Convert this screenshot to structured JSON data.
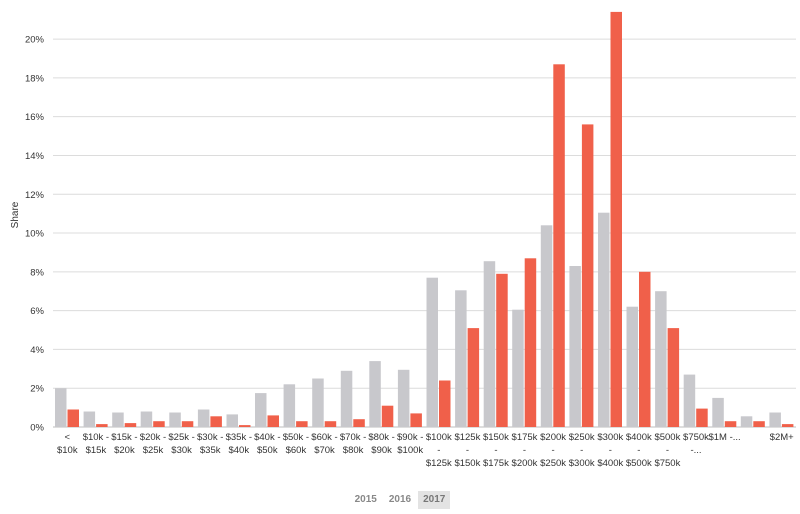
{
  "chart_data": {
    "type": "bar",
    "ylabel": "Share",
    "xlabel": "",
    "ylim": [
      0,
      21.5
    ],
    "yticks": [
      "0%",
      "2%",
      "4%",
      "6%",
      "8%",
      "10%",
      "12%",
      "14%",
      "16%",
      "18%",
      "20%"
    ],
    "grid": true,
    "legend_position": "bottom",
    "categories": [
      [
        "<",
        "$10k"
      ],
      [
        "$10k -",
        "$15k"
      ],
      [
        "$15k -",
        "$20k"
      ],
      [
        "$20k -",
        "$25k"
      ],
      [
        "$25k -",
        "$30k"
      ],
      [
        "$30k -",
        "$35k"
      ],
      [
        "$35k -",
        "$40k"
      ],
      [
        "$40k -",
        "$50k"
      ],
      [
        "$50k -",
        "$60k"
      ],
      [
        "$60k -",
        "$70k"
      ],
      [
        "$70k -",
        "$80k"
      ],
      [
        "$80k -",
        "$90k"
      ],
      [
        "$90k -",
        "$100k"
      ],
      [
        "$100k",
        "-",
        "$125k"
      ],
      [
        "$125k",
        "-",
        "$150k"
      ],
      [
        "$150k",
        "-",
        "$175k"
      ],
      [
        "$175k",
        "-",
        "$200k"
      ],
      [
        "$200k",
        "-",
        "$250k"
      ],
      [
        "$250k",
        "-",
        "$300k"
      ],
      [
        "$300k",
        "-",
        "$400k"
      ],
      [
        "$400k",
        "-",
        "$500k"
      ],
      [
        "$500k",
        "-",
        "$750k"
      ],
      [
        "$750k",
        "-..."
      ],
      [
        "$1M -..."
      ],
      [
        ""
      ],
      [
        "$2M+"
      ]
    ],
    "series": [
      {
        "name": "2016",
        "color": "#c8c8cc",
        "values": [
          2.0,
          0.8,
          0.75,
          0.8,
          0.75,
          0.9,
          0.65,
          1.75,
          2.2,
          2.5,
          2.9,
          3.4,
          2.95,
          7.7,
          7.05,
          8.55,
          6.05,
          10.4,
          8.3,
          11.05,
          6.2,
          7.0,
          2.7,
          1.5,
          0.55,
          0.75
        ]
      },
      {
        "name": "2017",
        "color": "#f0604a",
        "values": [
          0.9,
          0.15,
          0.2,
          0.3,
          0.3,
          0.55,
          0.1,
          0.6,
          0.3,
          0.3,
          0.4,
          1.1,
          0.7,
          2.4,
          5.1,
          7.9,
          8.7,
          18.7,
          15.6,
          21.4,
          8.0,
          5.1,
          0.95,
          0.3,
          0.3,
          0.15
        ]
      }
    ]
  },
  "legend": {
    "items": [
      {
        "label": "2015",
        "active": false
      },
      {
        "label": "2016",
        "active": false
      },
      {
        "label": "2017",
        "active": true
      }
    ]
  }
}
